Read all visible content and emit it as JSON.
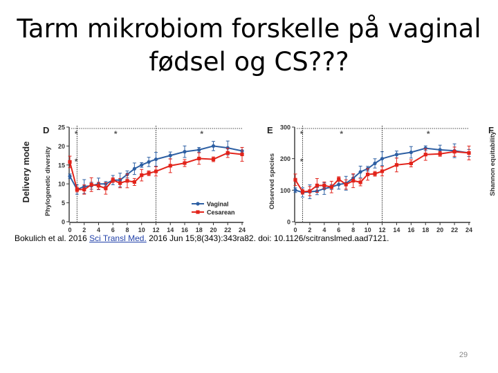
{
  "slide": {
    "title_line1": "Tarm mikrobiom forskelle på vaginal",
    "title_line2": "fødsel og CS???",
    "citation_pre": "Bokulich et al. 2016 ",
    "citation_link": "Sci Transl Med.",
    "citation_post": " 2016 Jun 15;8(343):343ra82. doi: 10.1126/scitranslmed.aad7121.",
    "page_number": "29"
  },
  "figure": {
    "row_label": "Delivery mode",
    "colors": {
      "vaginal": "#2d5fa3",
      "cesarean": "#e2231a"
    }
  },
  "chart_data": [
    {
      "type": "line",
      "panel": "D",
      "ylabel": "Phylogenetic diversity",
      "xlabel": "",
      "x": [
        0,
        1,
        2,
        3,
        4,
        5,
        6,
        7,
        8,
        9,
        10,
        11,
        12,
        14,
        16,
        18,
        20,
        22,
        24
      ],
      "xticks": [
        0,
        2,
        4,
        6,
        8,
        10,
        12,
        14,
        16,
        18,
        20,
        22,
        24
      ],
      "yticks": [
        0,
        5,
        10,
        15,
        20,
        25
      ],
      "xlim": [
        0,
        24
      ],
      "ylim": [
        0,
        25
      ],
      "grid": false,
      "legend_position": "bottom-right",
      "significance_markers": [
        {
          "x": 0.5,
          "label": "*"
        },
        {
          "x": 6,
          "label": "*"
        },
        {
          "x": 18,
          "label": "*"
        },
        {
          "x": 0.5,
          "label": "*"
        }
      ],
      "series": [
        {
          "name": "Vaginal",
          "values": [
            12.0,
            8.5,
            9.3,
            9.5,
            10.0,
            10.0,
            11.0,
            11.0,
            12.5,
            14.0,
            15.0,
            15.8,
            16.5,
            17.5,
            18.5,
            19.0,
            20.0,
            19.5,
            18.7
          ]
        },
        {
          "name": "Cesarean",
          "values": [
            15.8,
            8.5,
            8.5,
            9.8,
            9.5,
            8.8,
            11.0,
            10.2,
            10.8,
            10.5,
            12.3,
            12.8,
            13.3,
            14.8,
            15.5,
            16.7,
            16.5,
            18.2,
            17.8
          ]
        }
      ]
    },
    {
      "type": "line",
      "panel": "E",
      "ylabel": "Observed species",
      "xlabel": "",
      "x": [
        0,
        1,
        2,
        3,
        4,
        5,
        6,
        7,
        8,
        9,
        10,
        11,
        12,
        14,
        16,
        18,
        20,
        22,
        24
      ],
      "xticks": [
        0,
        2,
        4,
        6,
        8,
        10,
        12,
        14,
        16,
        18,
        20,
        22,
        24
      ],
      "yticks": [
        0,
        100,
        200,
        300
      ],
      "xlim": [
        0,
        24
      ],
      "ylim": [
        0,
        300
      ],
      "grid": false,
      "significance_markers": [
        {
          "x": 0.5,
          "label": "*"
        },
        {
          "x": 6,
          "label": "*"
        },
        {
          "x": 18,
          "label": "*"
        },
        {
          "x": 0.5,
          "label": "*"
        }
      ],
      "series": [
        {
          "name": "Vaginal",
          "values": [
            100,
            93,
            95,
            97,
            105,
            110,
            118,
            122,
            138,
            158,
            168,
            185,
            200,
            213,
            220,
            233,
            228,
            225,
            218
          ]
        },
        {
          "name": "Cesarean",
          "values": [
            133,
            95,
            97,
            115,
            115,
            110,
            135,
            118,
            130,
            125,
            150,
            152,
            160,
            180,
            185,
            213,
            215,
            222,
            218
          ]
        }
      ]
    },
    {
      "type": "line",
      "panel": "F",
      "ylabel": "Shannon equitability",
      "xlabel": ""
    }
  ]
}
